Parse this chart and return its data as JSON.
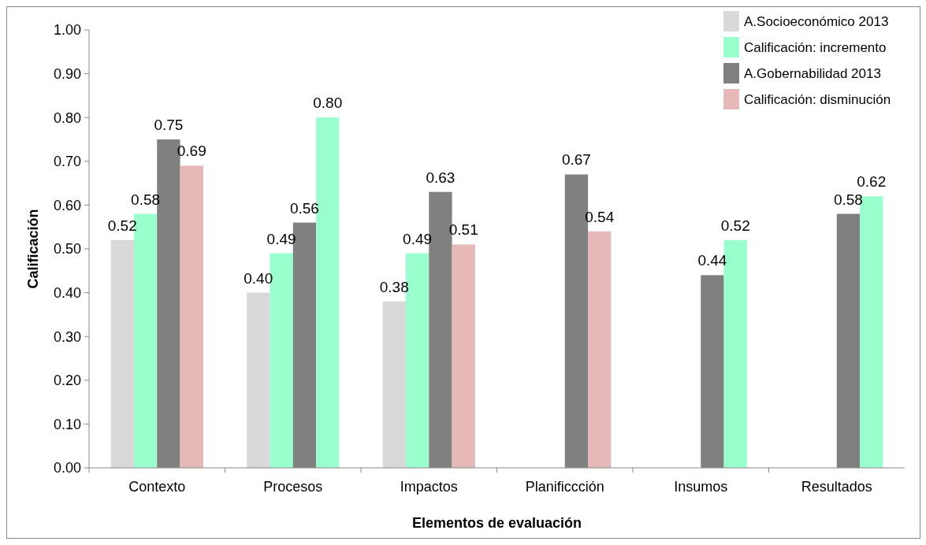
{
  "chart_data": {
    "type": "bar",
    "xlabel": "Elementos de evaluación",
    "ylabel": "Calificación",
    "categories": [
      "Contexto",
      "Procesos",
      "Impactos",
      "Planificcción",
      "Insumos",
      "Resultados"
    ],
    "series": [
      {
        "name": "A.Socioeconómico 2013",
        "color": "#d9d9d9",
        "values": [
          0.52,
          0.4,
          0.38,
          null,
          null,
          null
        ],
        "value_labels": [
          "0.52",
          "0.40",
          "0.38",
          null,
          null,
          null
        ]
      },
      {
        "name": "Calificación: incremento",
        "color": "#99ffcc",
        "values": [
          0.58,
          0.49,
          0.49,
          null,
          null,
          null
        ],
        "value_labels": [
          "0.58",
          "0.49",
          "0.49",
          null,
          null,
          null
        ]
      },
      {
        "name": "A.Gobernabilidad 2013",
        "color": "#808080",
        "values": [
          0.75,
          0.56,
          0.63,
          0.67,
          0.44,
          0.58
        ],
        "value_labels": [
          "0.75",
          "0.56",
          "0.63",
          "0.67",
          "0.44",
          "0.58"
        ]
      },
      {
        "name": "Calificación: disminución",
        "color": "#e6b8b7",
        "colors": [
          "#e6b8b7",
          "#99ffcc",
          "#e6b8b7",
          "#e6b8b7",
          "#99ffcc",
          "#99ffcc"
        ],
        "values": [
          0.69,
          0.8,
          0.51,
          0.54,
          0.52,
          0.62
        ],
        "value_labels": [
          "0.69",
          "0.80",
          "0.51",
          "0.54",
          "0.52",
          "0.62"
        ]
      }
    ],
    "ylim": [
      0,
      1
    ],
    "yticks": [
      {
        "value": 0,
        "label": "0.00"
      },
      {
        "value": 0.1,
        "label": "0.10"
      },
      {
        "value": 0.2,
        "label": "0.20"
      },
      {
        "value": 0.3,
        "label": "0.30"
      },
      {
        "value": 0.4,
        "label": "0.40"
      },
      {
        "value": 0.5,
        "label": "0.50"
      },
      {
        "value": 0.6,
        "label": "0.60"
      },
      {
        "value": 0.7,
        "label": "0.70"
      },
      {
        "value": 0.8,
        "label": "0.80"
      },
      {
        "value": 0.9,
        "label": "0.90"
      },
      {
        "value": 1,
        "label": "1.00"
      }
    ],
    "grid": false,
    "legend": "top right"
  }
}
